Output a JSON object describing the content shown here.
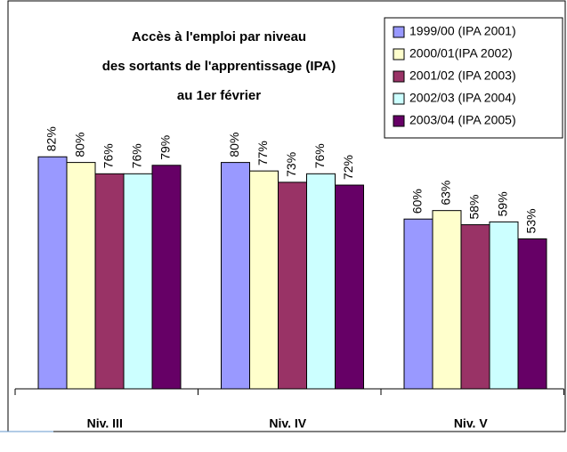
{
  "chart_data": {
    "type": "bar",
    "title": [
      "Accès à l'emploi par niveau",
      "des sortants de l'apprentissage (IPA)",
      "au 1er février"
    ],
    "categories": [
      "Niv. III",
      "Niv. IV",
      "Niv. V"
    ],
    "series": [
      {
        "name": "1999/00 (IPA 2001)",
        "color": "#9999ff",
        "values": [
          82,
          80,
          60
        ],
        "value_labels": [
          "82%",
          "80%",
          "60%"
        ]
      },
      {
        "name": "2000/01(IPA 2002)",
        "color": "#ffffcc",
        "values": [
          80,
          77,
          63
        ],
        "value_labels": [
          "80%",
          "77%",
          "63%"
        ]
      },
      {
        "name": "2001/02 (IPA 2003)",
        "color": "#993366",
        "values": [
          76,
          73,
          58
        ],
        "value_labels": [
          "76%",
          "73%",
          "58%"
        ]
      },
      {
        "name": "2002/03 (IPA 2004)",
        "color": "#ccffff",
        "values": [
          76,
          76,
          59
        ],
        "value_labels": [
          "76%",
          "76%",
          "59%"
        ]
      },
      {
        "name": "2003/04 (IPA 2005)",
        "color": "#660066",
        "values": [
          79,
          72,
          53
        ],
        "value_labels": [
          "79%",
          "72%",
          "53%"
        ]
      }
    ],
    "ylim": [
      0,
      100
    ],
    "legend": "top-right"
  }
}
